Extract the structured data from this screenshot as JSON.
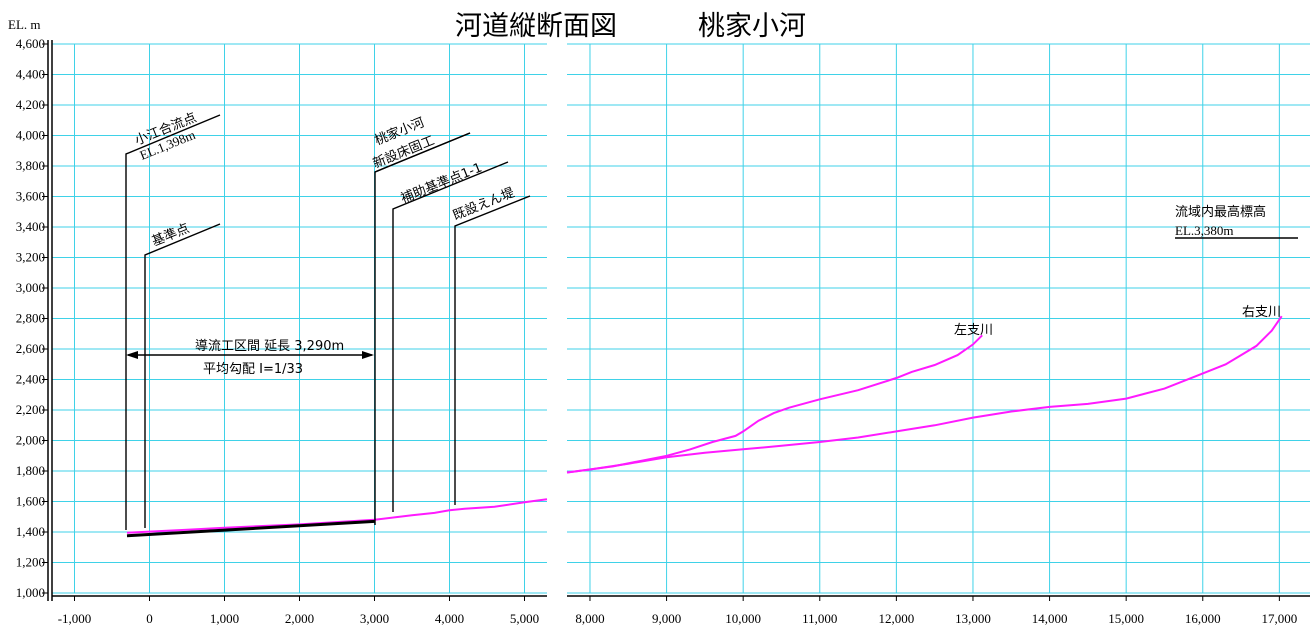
{
  "chart_data": {
    "type": "line",
    "title": "河道縦断面図　　　桃家小河",
    "ylabel": "EL. m",
    "ylim": [
      1000,
      4600
    ],
    "y_ticks": [
      "1,000",
      "1,200",
      "1,400",
      "1,600",
      "1,800",
      "2,000",
      "2,200",
      "2,400",
      "2,600",
      "2,800",
      "3,000",
      "3,200",
      "3,400",
      "3,600",
      "3,800",
      "4,000",
      "4,200",
      "4,400",
      "4,600"
    ],
    "panels": [
      {
        "xlim": [
          -1300,
          5300
        ],
        "x_ticks": [
          "-1,000",
          "0",
          "1,000",
          "2,000",
          "3,000",
          "4,000",
          "5,000"
        ]
      },
      {
        "xlim": [
          7700,
          17400
        ],
        "x_ticks": [
          "8,000",
          "9,000",
          "10,000",
          "11,000",
          "12,000",
          "13,000",
          "14,000",
          "15,000",
          "16,000",
          "17,000"
        ]
      }
    ],
    "series": [
      {
        "name": "",
        "x": [
          -300,
          500,
          1000,
          2000,
          3000,
          3500,
          3800,
          4000,
          4200,
          4600,
          5000,
          5300
        ],
        "y": [
          1395,
          1415,
          1428,
          1450,
          1480,
          1510,
          1525,
          1542,
          1552,
          1565,
          1595,
          1615
        ]
      },
      {
        "name": "",
        "x": [
          7700,
          8000,
          8500,
          9000,
          9500,
          10000,
          10500,
          11000,
          11500,
          12000,
          12500,
          13000,
          13500,
          14000,
          14500,
          15000,
          15500,
          16000,
          16300,
          16500,
          16700,
          16900,
          17030
        ],
        "y": [
          1790,
          1810,
          1848,
          1890,
          1920,
          1942,
          1965,
          1990,
          2020,
          2060,
          2100,
          2150,
          2190,
          2220,
          2240,
          2275,
          2340,
          2440,
          2500,
          2560,
          2620,
          2720,
          2815
        ]
      },
      {
        "name": "左支川",
        "x": [
          7700,
          8300,
          8700,
          9000,
          9300,
          9600,
          9900,
          10000,
          10200,
          10400,
          10600,
          11000,
          11500,
          12000,
          12200,
          12500,
          12800,
          13000,
          13120
        ],
        "y": [
          1790,
          1830,
          1870,
          1900,
          1940,
          1990,
          2030,
          2060,
          2130,
          2180,
          2215,
          2270,
          2330,
          2410,
          2450,
          2495,
          2560,
          2630,
          2690
        ]
      }
    ],
    "baseline": {
      "x": [
        -300,
        3000
      ],
      "y": [
        1375,
        1470
      ]
    },
    "annotations": [
      {
        "label": "小江合流点",
        "sub": "EL.1,398m"
      },
      {
        "label": "基準点"
      },
      {
        "label": "桃家小河",
        "sub": "新設床固工"
      },
      {
        "label": "補助基準点1-1"
      },
      {
        "label": "既設えん堤"
      },
      {
        "label": "導流工区間  延長 3,290m"
      },
      {
        "label": "平均勾配  I=1/33"
      },
      {
        "label": "左支川"
      },
      {
        "label": "右支川"
      },
      {
        "label": "流域内最高標高",
        "sub": "EL.3,380m"
      }
    ]
  }
}
